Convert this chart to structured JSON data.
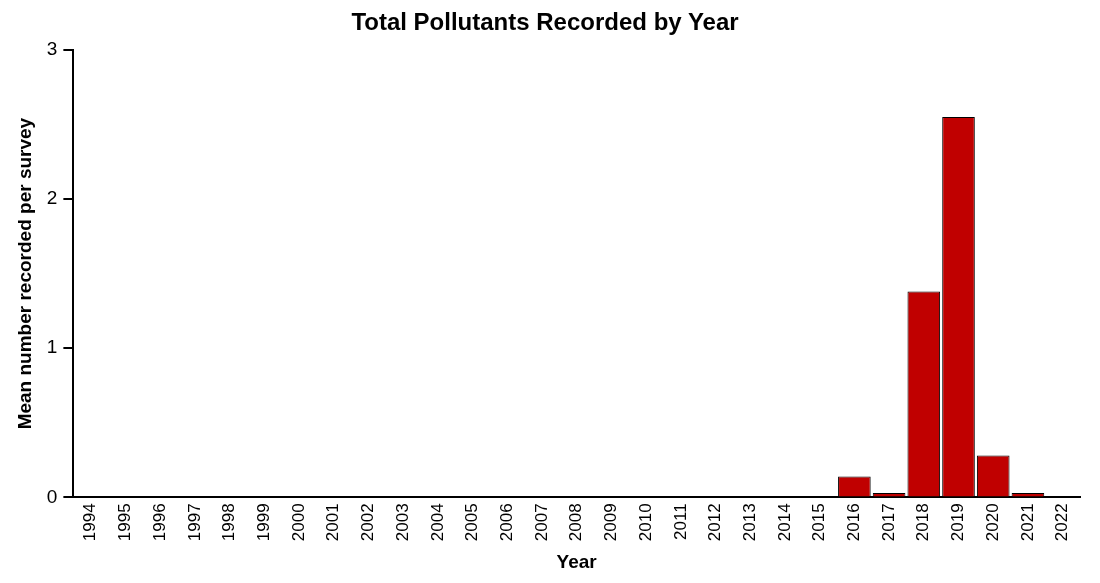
{
  "chart_data": {
    "type": "bar",
    "title": "Total Pollutants Recorded by Year",
    "xlabel": "Year",
    "ylabel": "Mean number recorded per survey",
    "categories": [
      "1994",
      "1995",
      "1996",
      "1997",
      "1998",
      "1999",
      "2000",
      "2001",
      "2002",
      "2003",
      "2004",
      "2005",
      "2006",
      "2007",
      "2008",
      "2009",
      "2010",
      "2011",
      "2012",
      "2013",
      "2014",
      "2015",
      "2016",
      "2017",
      "2018",
      "2019",
      "2020",
      "2021",
      "2022"
    ],
    "values": [
      0,
      0,
      0,
      0,
      0,
      0,
      0,
      0,
      0,
      0,
      0,
      0,
      0,
      0,
      0,
      0,
      0,
      0,
      0,
      0,
      0,
      0,
      0.14,
      0.03,
      1.38,
      2.55,
      0.28,
      0.03,
      0
    ],
    "color": "#c00000",
    "ylim": [
      0,
      3
    ],
    "yticks": [
      0,
      1,
      2,
      3
    ],
    "grid": false,
    "legend": false
  }
}
